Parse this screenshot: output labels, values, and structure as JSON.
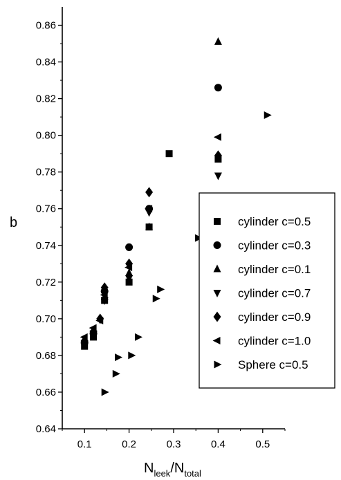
{
  "chart_data": {
    "type": "scatter",
    "xlabel": "N_leek/N_total",
    "xlabel_parts": {
      "main_1": "N",
      "sub_1": "leek",
      "sep": "/",
      "main_2": "N",
      "sub_2": "total"
    },
    "ylabel": "b",
    "xlim": [
      0.05,
      0.55
    ],
    "ylim": [
      0.64,
      0.87
    ],
    "x_ticks": [
      0.1,
      0.2,
      0.3,
      0.4,
      0.5
    ],
    "x_tick_labels": [
      "0.1",
      "0.2",
      "0.3",
      "0.4",
      "0.5"
    ],
    "y_ticks": [
      0.64,
      0.66,
      0.68,
      0.7,
      0.72,
      0.74,
      0.76,
      0.78,
      0.8,
      0.82,
      0.84,
      0.86
    ],
    "y_tick_labels": [
      "0.64",
      "0.66",
      "0.68",
      "0.70",
      "0.72",
      "0.74",
      "0.76",
      "0.78",
      "0.80",
      "0.82",
      "0.84",
      "0.86"
    ],
    "grid": false,
    "legend_position": "lower-right",
    "series": [
      {
        "name": "cylinder c=0.5",
        "marker": "square",
        "x": [
          0.1,
          0.12,
          0.145,
          0.2,
          0.245,
          0.29,
          0.4
        ],
        "y": [
          0.685,
          0.69,
          0.71,
          0.72,
          0.75,
          0.79,
          0.787
        ]
      },
      {
        "name": "cylinder c=0.3",
        "marker": "circle",
        "x": [
          0.1,
          0.12,
          0.145,
          0.2,
          0.245,
          0.4
        ],
        "y": [
          0.687,
          0.692,
          0.715,
          0.739,
          0.76,
          0.826
        ]
      },
      {
        "name": "cylinder c=0.1",
        "marker": "triangle-up",
        "x": [
          0.1,
          0.145,
          0.2,
          0.245,
          0.4
        ],
        "y": [
          0.688,
          0.712,
          0.725,
          0.75,
          0.851
        ]
      },
      {
        "name": "cylinder c=0.7",
        "marker": "triangle-down",
        "x": [
          0.1,
          0.12,
          0.145,
          0.2,
          0.245,
          0.4
        ],
        "y": [
          0.686,
          0.692,
          0.71,
          0.722,
          0.758,
          0.778
        ]
      },
      {
        "name": "cylinder c=0.9",
        "marker": "diamond",
        "x": [
          0.1,
          0.12,
          0.135,
          0.145,
          0.2,
          0.245,
          0.4
        ],
        "y": [
          0.688,
          0.693,
          0.7,
          0.717,
          0.73,
          0.769,
          0.789
        ]
      },
      {
        "name": "cylinder c=1.0",
        "marker": "triangle-left",
        "x": [
          0.1,
          0.12,
          0.135,
          0.145,
          0.2,
          0.245,
          0.4
        ],
        "y": [
          0.69,
          0.695,
          0.699,
          0.713,
          0.728,
          0.76,
          0.799
        ]
      },
      {
        "name": "Sphere  c=0.5",
        "marker": "triangle-right",
        "x": [
          0.145,
          0.17,
          0.175,
          0.205,
          0.22,
          0.26,
          0.27,
          0.355,
          0.51
        ],
        "y": [
          0.66,
          0.67,
          0.679,
          0.68,
          0.69,
          0.711,
          0.716,
          0.744,
          0.811
        ]
      }
    ]
  }
}
